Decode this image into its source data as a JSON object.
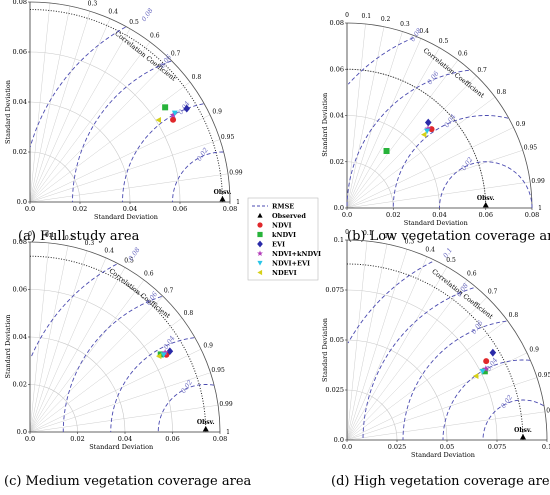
{
  "axis_labels": {
    "standard_deviation": "Standard Deviation",
    "correlation_coefficient": "Correlation Coefficient"
  },
  "legend": [
    {
      "name": "RMSE",
      "marker": "dashed-line",
      "color": "#4a4ab0"
    },
    {
      "name": "Observed",
      "marker": "triangle-up",
      "color": "#000000"
    },
    {
      "name": "NDVI",
      "marker": "circle",
      "color": "#e0282b"
    },
    {
      "name": "kNDVI",
      "marker": "square",
      "color": "#27b33a"
    },
    {
      "name": "EVI",
      "marker": "diamond",
      "color": "#2a2aa8"
    },
    {
      "name": "NDVI+kNDVI",
      "marker": "star",
      "color": "#b23ab8"
    },
    {
      "name": "NDVI+EVI",
      "marker": "triangle-down",
      "color": "#29c5e8"
    },
    {
      "name": "NDEVI",
      "marker": "triangle-left",
      "color": "#d6d018"
    }
  ],
  "chart_data": [
    {
      "type": "scatter",
      "subtype": "taylor-diagram",
      "title": "(a) Full study area",
      "xlabel": "Standard Deviation",
      "ylabel": "Standard Deviation",
      "r_label": "Correlation Coefficient",
      "std_max": 0.08,
      "std_ticks": [
        0.0,
        0.02,
        0.04,
        0.06,
        0.08
      ],
      "std_tick_labels": [
        "0.0",
        "0.02",
        "0.04",
        "0.06",
        "0.08"
      ],
      "corr_ticks": [
        "0",
        "0.1",
        "0.2",
        "0.3",
        "0.4",
        "0.5",
        "0.6",
        "0.7",
        "0.8",
        "0.9",
        "0.95",
        "0.99",
        "1"
      ],
      "rmse_contours": [
        0.02,
        0.04,
        0.06,
        0.08
      ],
      "rmse_labels": [
        "0.02",
        "0.04",
        "0.06",
        "0.08"
      ],
      "observed": {
        "label": "Obsv.",
        "std": 0.077
      },
      "points": [
        {
          "name": "NDVI",
          "std": 0.066,
          "corr": 0.867
        },
        {
          "name": "kNDVI",
          "std": 0.066,
          "corr": 0.819
        },
        {
          "name": "EVI",
          "std": 0.073,
          "corr": 0.859
        },
        {
          "name": "NDVI+kNDVI",
          "std": 0.067,
          "corr": 0.855
        },
        {
          "name": "NDVI+EVI",
          "std": 0.068,
          "corr": 0.852
        },
        {
          "name": "NDEVI",
          "std": 0.061,
          "corr": 0.843
        }
      ]
    },
    {
      "type": "scatter",
      "subtype": "taylor-diagram",
      "title": "(b) Low vegetation coverage area",
      "xlabel": "Standard Deviation",
      "ylabel": "Standard Deviation",
      "r_label": "Correlation Coefficient",
      "std_max": 0.08,
      "std_ticks": [
        0.0,
        0.02,
        0.04,
        0.06,
        0.08
      ],
      "std_tick_labels": [
        "0.0",
        "0.02",
        "0.04",
        "0.06",
        "0.08"
      ],
      "corr_ticks": [
        "0",
        "0.1",
        "0.2",
        "0.3",
        "0.4",
        "0.5",
        "0.6",
        "0.7",
        "0.8",
        "0.9",
        "0.95",
        "0.99",
        "1"
      ],
      "rmse_contours": [
        0.02,
        0.04,
        0.06,
        0.08
      ],
      "rmse_labels": [
        "0.02",
        "0.04",
        "0.06",
        "0.08"
      ],
      "observed": {
        "label": "Obsv.",
        "std": 0.06
      },
      "points": [
        {
          "name": "NDVI",
          "std": 0.05,
          "corr": 0.731
        },
        {
          "name": "kNDVI",
          "std": 0.03,
          "corr": 0.57
        },
        {
          "name": "EVI",
          "std": 0.051,
          "corr": 0.689
        },
        {
          "name": "NDVI+kNDVI",
          "std": 0.049,
          "corr": 0.715
        },
        {
          "name": "NDVI+EVI",
          "std": 0.048,
          "corr": 0.721
        },
        {
          "name": "NDEVI",
          "std": 0.046,
          "corr": 0.724
        }
      ]
    },
    {
      "type": "scatter",
      "subtype": "taylor-diagram",
      "title": "(c) Medium vegetation coverage area",
      "xlabel": "Standard Deviation",
      "ylabel": "Standard Deviation",
      "r_label": "Correlation Coefficient",
      "std_max": 0.08,
      "std_ticks": [
        0.0,
        0.02,
        0.04,
        0.06,
        0.08
      ],
      "std_tick_labels": [
        "0.0",
        "0.02",
        "0.04",
        "0.06",
        "0.08"
      ],
      "corr_ticks": [
        "0",
        "0.1",
        "0.2",
        "0.3",
        "0.4",
        "0.5",
        "0.6",
        "0.7",
        "0.8",
        "0.9",
        "0.95",
        "0.99",
        "1"
      ],
      "rmse_contours": [
        0.02,
        0.04,
        0.06,
        0.08
      ],
      "rmse_labels": [
        "0.02",
        "0.04",
        "0.06",
        "0.08"
      ],
      "observed": {
        "label": "Obsv.",
        "std": 0.074
      },
      "points": [
        {
          "name": "NDVI",
          "std": 0.066,
          "corr": 0.87
        },
        {
          "name": "kNDVI",
          "std": 0.064,
          "corr": 0.86
        },
        {
          "name": "EVI",
          "std": 0.068,
          "corr": 0.866
        },
        {
          "name": "NDVI+kNDVI",
          "std": 0.066,
          "corr": 0.862
        },
        {
          "name": "NDVI+EVI",
          "std": 0.065,
          "corr": 0.866
        },
        {
          "name": "NDEVI",
          "std": 0.063,
          "corr": 0.862
        }
      ]
    },
    {
      "type": "scatter",
      "subtype": "taylor-diagram",
      "title": "(d) High vegetation coverage area",
      "xlabel": "Standard Deviation",
      "ylabel": "Standard Deviation",
      "r_label": "Correlation Coefficient",
      "std_max": 0.1,
      "std_ticks": [
        0.0,
        0.025,
        0.05,
        0.075,
        0.1
      ],
      "std_tick_labels": [
        "0.0",
        "0.025",
        "0.05",
        "0.075",
        "0.1"
      ],
      "corr_ticks": [
        "0",
        "0.1",
        "0.2",
        "0.3",
        "0.4",
        "0.5",
        "0.6",
        "0.7",
        "0.8",
        "0.9",
        "0.95",
        "0.99",
        "1"
      ],
      "rmse_contours": [
        0.02,
        0.04,
        0.06,
        0.08,
        0.1
      ],
      "rmse_labels": [
        "0.02",
        "0.04",
        "0.06",
        "0.08",
        "0.1"
      ],
      "observed": {
        "label": "Obsv.",
        "std": 0.088
      },
      "points": [
        {
          "name": "NDVI",
          "std": 0.08,
          "corr": 0.87
        },
        {
          "name": "kNDVI",
          "std": 0.077,
          "corr": 0.895
        },
        {
          "name": "EVI",
          "std": 0.085,
          "corr": 0.858
        },
        {
          "name": "NDVI+kNDVI",
          "std": 0.078,
          "corr": 0.89
        },
        {
          "name": "NDVI+EVI",
          "std": 0.076,
          "corr": 0.892
        },
        {
          "name": "NDEVI",
          "std": 0.072,
          "corr": 0.896
        }
      ]
    }
  ]
}
